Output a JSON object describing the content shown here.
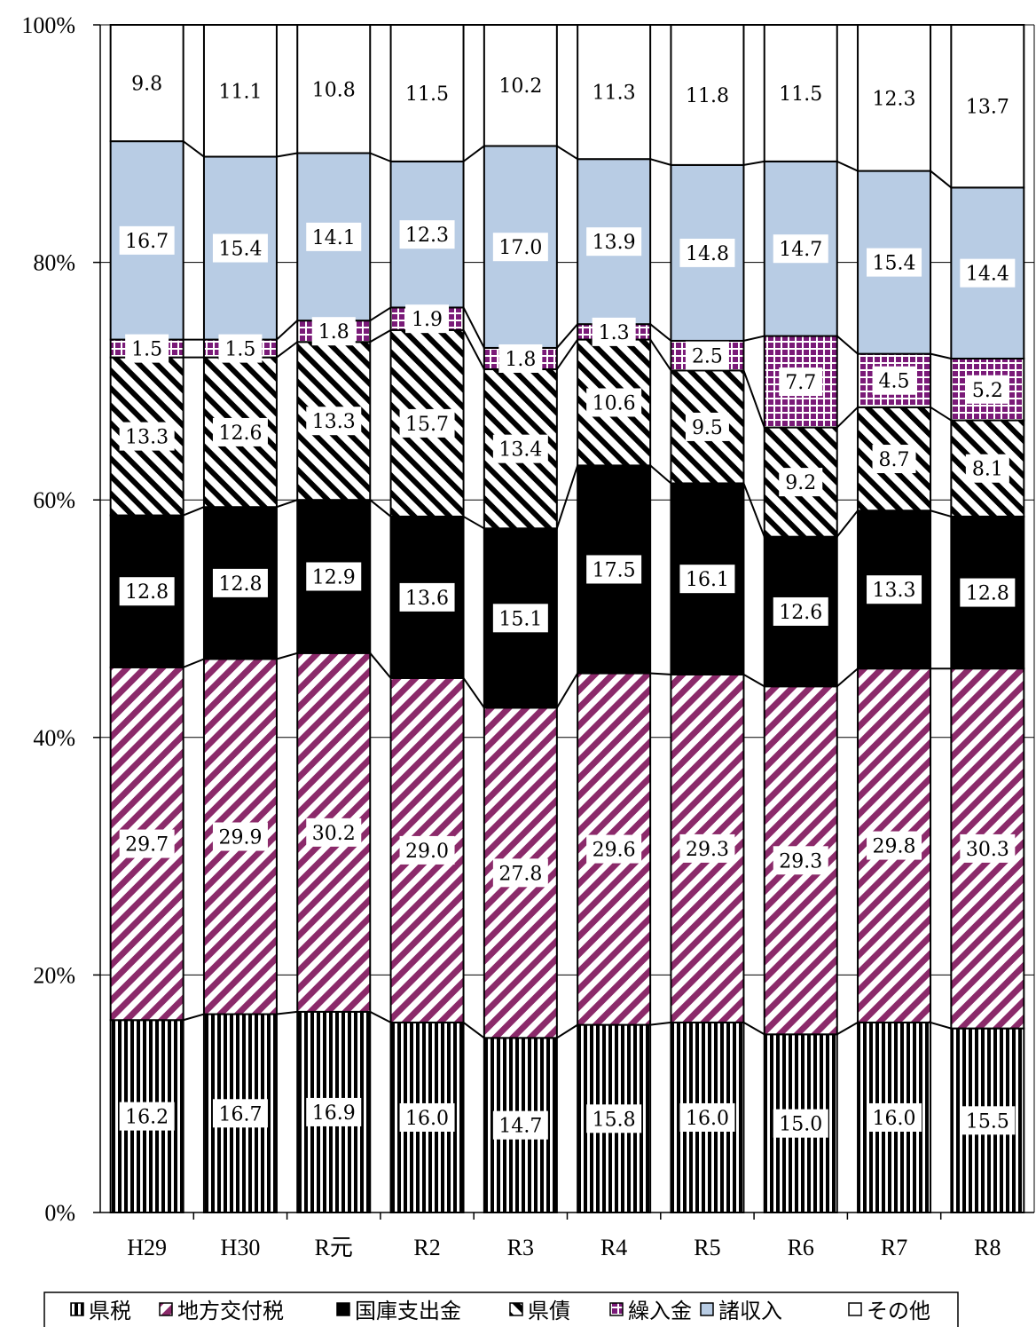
{
  "chart_data": {
    "type": "bar",
    "stacked": true,
    "categories": [
      "H29",
      "H30",
      "R元",
      "R2",
      "R3",
      "R4",
      "R5",
      "R6",
      "R7",
      "R8"
    ],
    "ylim": [
      0,
      100
    ],
    "yticks": [
      "0%",
      "20%",
      "40%",
      "60%",
      "80%",
      "100%"
    ],
    "grid": true,
    "legend_position": "bottom",
    "series": [
      {
        "name": "県税",
        "color": "#000000",
        "pattern": "vertical-lines",
        "values": [
          16.2,
          16.7,
          16.9,
          16.0,
          14.7,
          15.8,
          16.0,
          15.0,
          16.0,
          15.5
        ]
      },
      {
        "name": "地方交付税",
        "color": "#8b2a6a",
        "pattern": "diagonal-stripes",
        "values": [
          29.7,
          29.9,
          30.2,
          29.0,
          27.8,
          29.6,
          29.3,
          29.3,
          29.8,
          30.3
        ]
      },
      {
        "name": "国庫支出金",
        "color": "#000000",
        "pattern": "solid",
        "values": [
          12.8,
          12.8,
          12.9,
          13.6,
          15.1,
          17.5,
          16.1,
          12.6,
          13.3,
          12.8
        ]
      },
      {
        "name": "県債",
        "color": "#000000",
        "pattern": "wide-diagonal",
        "values": [
          13.3,
          12.6,
          13.3,
          15.7,
          13.4,
          10.6,
          9.5,
          9.2,
          8.7,
          8.1
        ]
      },
      {
        "name": "繰入金",
        "color": "#7a1a78",
        "pattern": "grid",
        "values": [
          1.5,
          1.5,
          1.8,
          1.9,
          1.8,
          1.3,
          2.5,
          7.7,
          4.5,
          5.2
        ]
      },
      {
        "name": "諸収入",
        "color": "#b8cce4",
        "pattern": "solid",
        "values": [
          16.7,
          15.4,
          14.1,
          12.3,
          17.0,
          13.9,
          14.8,
          14.7,
          15.4,
          14.4
        ]
      },
      {
        "name": "その他",
        "color": "#ffffff",
        "pattern": "solid",
        "values": [
          9.8,
          11.1,
          10.8,
          11.5,
          10.2,
          11.3,
          11.8,
          11.5,
          12.3,
          13.7
        ]
      }
    ]
  }
}
